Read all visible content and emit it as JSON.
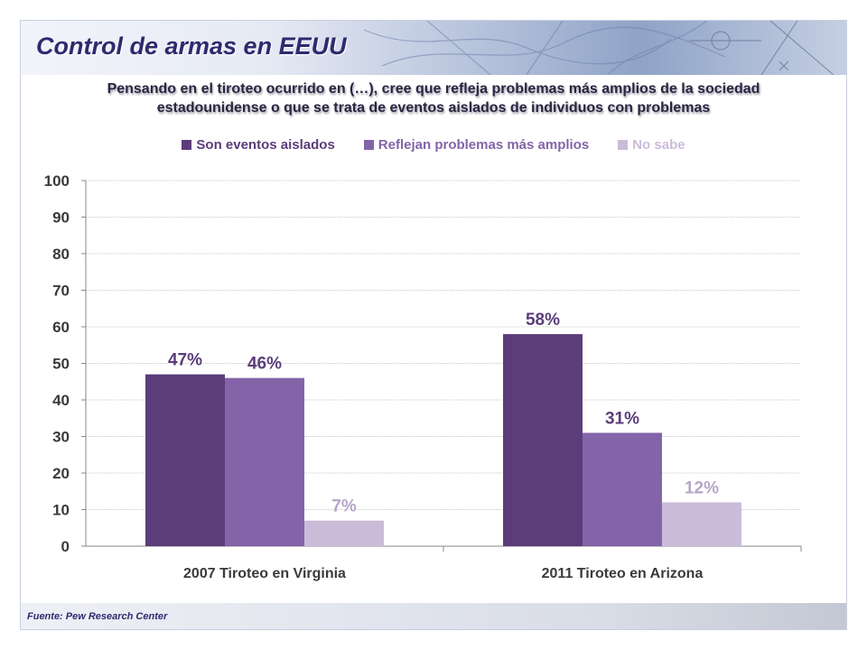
{
  "header": {
    "title": "Control de armas en EEUU"
  },
  "source": "Fuente: Pew Research Center",
  "colors": {
    "series": [
      "#5b3d7a",
      "#8364a8",
      "#cabcd9"
    ],
    "title": "#2e2a6e"
  },
  "chart_data": {
    "type": "bar",
    "title": "Pensando en el tiroteo ocurrido en (…), cree que refleja problemas más amplios de la sociedad estadounidense o que se trata de eventos aislados de individuos con problemas",
    "title_lines": [
      "Pensando en el tiroteo ocurrido en (…), cree que refleja problemas más amplios de la sociedad",
      "estadounidense o que se trata de eventos aislados de individuos con problemas"
    ],
    "categories": [
      "2007 Tiroteo en Virginia",
      "2011 Tiroteo en Arizona"
    ],
    "series": [
      {
        "name": "Son eventos aislados",
        "values": [
          47,
          58
        ],
        "labels": [
          "47%",
          "58%"
        ]
      },
      {
        "name": "Reflejan problemas más amplios",
        "values": [
          46,
          31
        ],
        "labels": [
          "46%",
          "31%"
        ]
      },
      {
        "name": "No sabe",
        "values": [
          7,
          12
        ],
        "labels": [
          "7%",
          "12%"
        ]
      }
    ],
    "ylim": [
      0,
      100
    ],
    "yticks": [
      "0",
      "10",
      "20",
      "30",
      "40",
      "50",
      "60",
      "70",
      "80",
      "90",
      "100"
    ],
    "xlabel": "",
    "ylabel": "",
    "grid": true,
    "legend": "top-center"
  }
}
